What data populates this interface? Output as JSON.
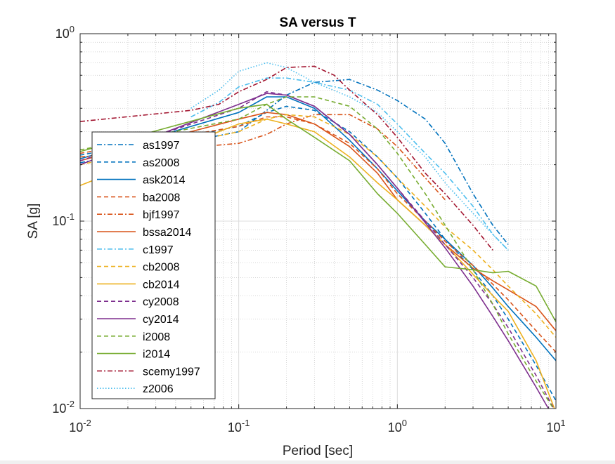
{
  "chart_data": {
    "type": "line",
    "title": "SA versus T",
    "xlabel": "Period [sec]",
    "ylabel": "SA [g]",
    "xscale": "log",
    "yscale": "log",
    "xlim": [
      0.01,
      10
    ],
    "ylim": [
      0.01,
      1
    ],
    "grid": true,
    "minor_grid": true,
    "legend_position": "left",
    "x_ticks": [
      {
        "base": "10",
        "exp": "-2"
      },
      {
        "base": "10",
        "exp": "-1"
      },
      {
        "base": "10",
        "exp": "0"
      },
      {
        "base": "10",
        "exp": "1"
      }
    ],
    "y_ticks": [
      {
        "base": "10",
        "exp": "-2"
      },
      {
        "base": "10",
        "exp": "-1"
      },
      {
        "base": "10",
        "exp": "0"
      }
    ],
    "series": [
      {
        "name": "as1997",
        "color": "#0072BD",
        "style": "dashdot",
        "x": [
          0.01,
          0.1,
          0.15,
          0.2,
          0.3,
          0.5,
          0.75,
          1,
          1.5,
          2,
          3,
          4,
          5
        ],
        "y": [
          0.205,
          0.3,
          0.39,
          0.47,
          0.55,
          0.57,
          0.5,
          0.44,
          0.35,
          0.26,
          0.14,
          0.095,
          0.075
        ]
      },
      {
        "name": "as2008",
        "color": "#0072BD",
        "style": "dashed",
        "x": [
          0.01,
          0.1,
          0.15,
          0.2,
          0.3,
          0.5,
          0.75,
          1,
          1.5,
          2,
          3,
          4,
          5,
          7.5,
          10
        ],
        "y": [
          0.225,
          0.32,
          0.38,
          0.41,
          0.39,
          0.3,
          0.22,
          0.17,
          0.11,
          0.08,
          0.055,
          0.04,
          0.03,
          0.017,
          0.011
        ]
      },
      {
        "name": "ask2014",
        "color": "#0072BD",
        "style": "solid",
        "x": [
          0.01,
          0.1,
          0.15,
          0.2,
          0.3,
          0.5,
          0.75,
          1,
          1.5,
          2,
          3,
          4,
          5,
          7.5,
          10
        ],
        "y": [
          0.215,
          0.38,
          0.46,
          0.46,
          0.4,
          0.27,
          0.19,
          0.145,
          0.1,
          0.08,
          0.058,
          0.044,
          0.035,
          0.024,
          0.018
        ]
      },
      {
        "name": "ba2008",
        "color": "#D95319",
        "style": "dashed",
        "x": [
          0.01,
          0.1,
          0.15,
          0.2,
          0.3,
          0.5,
          0.75,
          1,
          1.5,
          2,
          3,
          4,
          5,
          7.5,
          10
        ],
        "y": [
          0.23,
          0.32,
          0.36,
          0.36,
          0.33,
          0.26,
          0.19,
          0.14,
          0.1,
          0.078,
          0.058,
          0.046,
          0.038,
          0.026,
          0.02
        ]
      },
      {
        "name": "bjf1997",
        "color": "#D95319",
        "style": "dashdot",
        "x": [
          0.01,
          0.1,
          0.15,
          0.2,
          0.3,
          0.5,
          0.75,
          1,
          1.5,
          2
        ],
        "y": [
          0.22,
          0.26,
          0.29,
          0.33,
          0.37,
          0.37,
          0.31,
          0.25,
          0.17,
          0.13
        ]
      },
      {
        "name": "bssa2014",
        "color": "#D95319",
        "style": "solid",
        "x": [
          0.01,
          0.1,
          0.15,
          0.2,
          0.3,
          0.5,
          0.75,
          1,
          1.5,
          2,
          3,
          4,
          5,
          7.5,
          10
        ],
        "y": [
          0.21,
          0.35,
          0.38,
          0.37,
          0.33,
          0.25,
          0.18,
          0.13,
          0.095,
          0.075,
          0.056,
          0.048,
          0.043,
          0.035,
          0.026
        ]
      },
      {
        "name": "c1997",
        "color": "#4DBEEE",
        "style": "dashdot",
        "x": [
          0.05,
          0.075,
          0.1,
          0.15,
          0.2,
          0.3,
          0.5,
          0.75,
          1,
          1.5,
          2,
          3,
          4,
          5
        ],
        "y": [
          0.36,
          0.43,
          0.52,
          0.58,
          0.58,
          0.55,
          0.5,
          0.42,
          0.33,
          0.23,
          0.18,
          0.12,
          0.085,
          0.07
        ]
      },
      {
        "name": "cb2008",
        "color": "#EDB120",
        "style": "dashed",
        "x": [
          0.01,
          0.1,
          0.15,
          0.2,
          0.3,
          0.5,
          0.75,
          1,
          1.5,
          2,
          3,
          4,
          5,
          7.5,
          10
        ],
        "y": [
          0.2,
          0.3,
          0.35,
          0.37,
          0.36,
          0.29,
          0.22,
          0.17,
          0.12,
          0.093,
          0.07,
          0.055,
          0.045,
          0.032,
          0.024
        ]
      },
      {
        "name": "cb2014",
        "color": "#EDB120",
        "style": "solid",
        "x": [
          0.01,
          0.1,
          0.15,
          0.2,
          0.3,
          0.5,
          0.75,
          1,
          1.5,
          2,
          3,
          4,
          5,
          7.5,
          10
        ],
        "y": [
          0.155,
          0.33,
          0.35,
          0.33,
          0.3,
          0.22,
          0.16,
          0.13,
          0.095,
          0.075,
          0.052,
          0.04,
          0.033,
          0.018,
          0.0095
        ]
      },
      {
        "name": "cy2008",
        "color": "#7E2F8E",
        "style": "dashed",
        "x": [
          0.01,
          0.1,
          0.15,
          0.2,
          0.3,
          0.5,
          0.75,
          1,
          1.5,
          2,
          3,
          4,
          5,
          7.5,
          10
        ],
        "y": [
          0.21,
          0.4,
          0.49,
          0.47,
          0.41,
          0.29,
          0.2,
          0.15,
          0.1,
          0.075,
          0.05,
          0.036,
          0.027,
          0.015,
          0.0095
        ]
      },
      {
        "name": "cy2014",
        "color": "#7E2F8E",
        "style": "solid",
        "x": [
          0.01,
          0.1,
          0.15,
          0.2,
          0.3,
          0.5,
          0.75,
          1,
          1.5,
          2,
          3,
          4,
          5,
          7.5,
          10
        ],
        "y": [
          0.2,
          0.42,
          0.48,
          0.47,
          0.41,
          0.29,
          0.2,
          0.15,
          0.098,
          0.072,
          0.045,
          0.031,
          0.023,
          0.013,
          0.0085
        ]
      },
      {
        "name": "i2008",
        "color": "#77AC30",
        "style": "dashed",
        "x": [
          0.01,
          0.1,
          0.15,
          0.2,
          0.3,
          0.5,
          0.75,
          1,
          1.5,
          2,
          3,
          4,
          5,
          7.5,
          10
        ],
        "y": [
          0.24,
          0.35,
          0.42,
          0.46,
          0.46,
          0.41,
          0.31,
          0.23,
          0.14,
          0.095,
          0.055,
          0.036,
          0.025,
          0.014,
          0.0095
        ]
      },
      {
        "name": "i2014",
        "color": "#77AC30",
        "style": "solid",
        "x": [
          0.01,
          0.1,
          0.15,
          0.2,
          0.3,
          0.5,
          0.75,
          1,
          1.5,
          2,
          3,
          4,
          5,
          7.5,
          10
        ],
        "y": [
          0.235,
          0.4,
          0.42,
          0.35,
          0.28,
          0.21,
          0.14,
          0.11,
          0.075,
          0.057,
          0.055,
          0.053,
          0.054,
          0.045,
          0.029
        ]
      },
      {
        "name": "scemy1997",
        "color": "#A2142F",
        "style": "dashdot",
        "x": [
          0.01,
          0.05,
          0.075,
          0.1,
          0.15,
          0.2,
          0.3,
          0.4,
          0.5,
          0.75,
          1,
          1.5,
          2,
          3,
          4
        ],
        "y": [
          0.34,
          0.39,
          0.42,
          0.49,
          0.57,
          0.66,
          0.67,
          0.6,
          0.5,
          0.37,
          0.28,
          0.18,
          0.14,
          0.095,
          0.07
        ]
      },
      {
        "name": "z2006",
        "color": "#4DBEEE",
        "style": "dotted",
        "x": [
          0.05,
          0.075,
          0.1,
          0.15,
          0.2,
          0.3,
          0.5,
          0.75,
          1,
          1.5,
          2,
          3,
          4,
          5
        ],
        "y": [
          0.4,
          0.5,
          0.63,
          0.7,
          0.66,
          0.55,
          0.46,
          0.38,
          0.3,
          0.22,
          0.16,
          0.11,
          0.085,
          0.07
        ]
      }
    ]
  }
}
